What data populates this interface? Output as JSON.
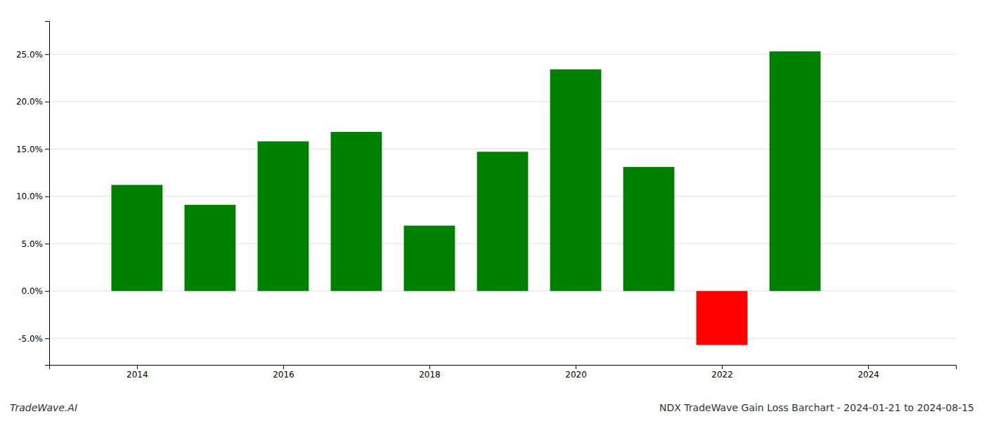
{
  "chart_data": {
    "type": "bar",
    "title": "NDX TradeWave Gain Loss Barchart - 2024-01-21 to 2024-08-15",
    "annotations": [
      "TradeWave.AI"
    ],
    "x": [
      2014,
      2015,
      2016,
      2017,
      2018,
      2019,
      2020,
      2021,
      2022,
      2023
    ],
    "values": [
      0.112,
      0.091,
      0.158,
      0.168,
      0.069,
      0.147,
      0.234,
      0.131,
      -0.057,
      0.253
    ],
    "colors": [
      "#008000",
      "#008000",
      "#008000",
      "#008000",
      "#008000",
      "#008000",
      "#008000",
      "#008000",
      "#ff0000",
      "#008000"
    ],
    "xlim": [
      2012.8,
      2025.2
    ],
    "xticks": [
      2014,
      2016,
      2018,
      2020,
      2022,
      2024
    ],
    "ylim": [
      -0.078,
      0.285
    ],
    "yticks": [
      {
        "value": -0.05,
        "label": "-5.0%"
      },
      {
        "value": 0.0,
        "label": "0.0%"
      },
      {
        "value": 0.05,
        "label": "5.0%"
      },
      {
        "value": 0.1,
        "label": "10.0%"
      },
      {
        "value": 0.15,
        "label": "15.0%"
      },
      {
        "value": 0.2,
        "label": "20.0%"
      },
      {
        "value": 0.25,
        "label": "25.0%"
      }
    ],
    "grid": true
  }
}
